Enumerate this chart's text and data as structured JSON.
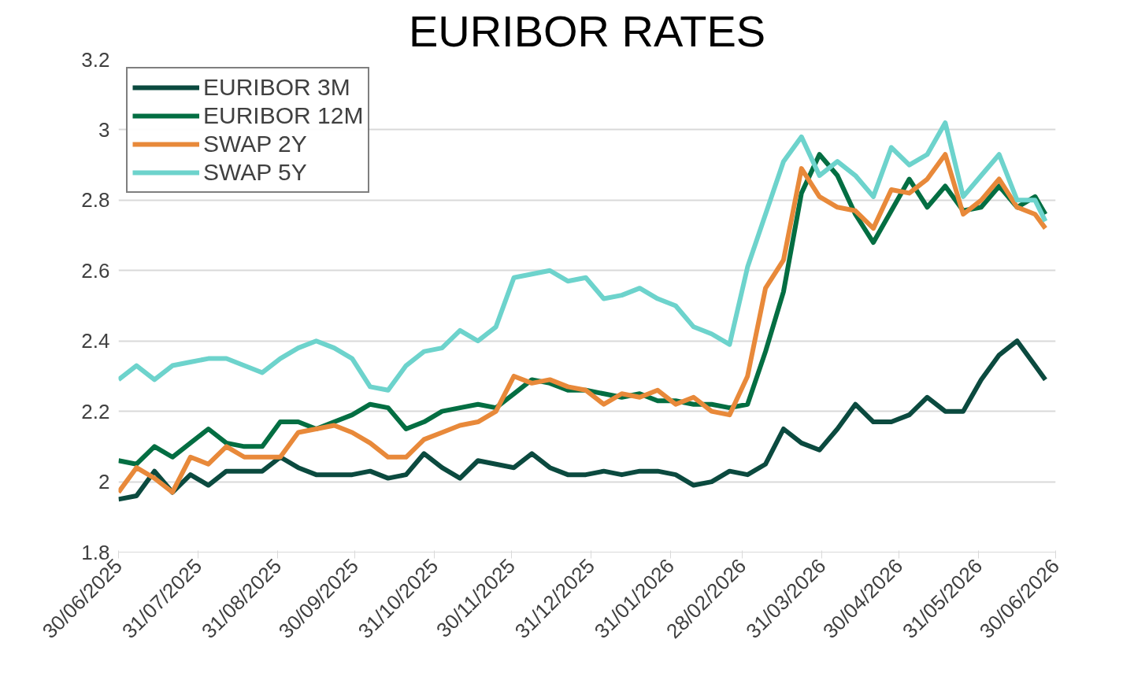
{
  "chart_data": {
    "type": "line",
    "title": "EURIBOR RATES",
    "x": [
      "2025-06-30",
      "2025-07-07",
      "2025-07-14",
      "2025-07-21",
      "2025-07-28",
      "2025-08-04",
      "2025-08-11",
      "2025-08-18",
      "2025-08-25",
      "2025-09-01",
      "2025-09-08",
      "2025-09-15",
      "2025-09-22",
      "2025-09-29",
      "2025-10-06",
      "2025-10-13",
      "2025-10-20",
      "2025-10-27",
      "2025-11-03",
      "2025-11-10",
      "2025-11-17",
      "2025-11-24",
      "2025-12-01",
      "2025-12-08",
      "2025-12-15",
      "2025-12-22",
      "2025-12-29",
      "2026-01-05",
      "2026-01-12",
      "2026-01-19",
      "2026-01-26",
      "2026-02-02",
      "2026-02-09",
      "2026-02-16",
      "2026-02-23",
      "2026-03-02",
      "2026-03-09",
      "2026-03-16",
      "2026-03-23",
      "2026-03-30",
      "2026-04-06",
      "2026-04-13",
      "2026-04-20",
      "2026-04-27",
      "2026-05-04",
      "2026-05-11",
      "2026-05-18",
      "2026-05-25",
      "2026-06-01",
      "2026-06-08",
      "2026-06-15",
      "2026-06-22",
      "2026-06-26"
    ],
    "series": [
      {
        "name": "EURIBOR 3M",
        "color": "#0b4a3f",
        "values": [
          1.95,
          1.96,
          2.03,
          1.97,
          2.02,
          1.99,
          2.03,
          2.03,
          2.03,
          2.07,
          2.04,
          2.02,
          2.02,
          2.02,
          2.03,
          2.01,
          2.02,
          2.08,
          2.04,
          2.01,
          2.06,
          2.05,
          2.04,
          2.08,
          2.04,
          2.02,
          2.02,
          2.03,
          2.02,
          2.03,
          2.03,
          2.02,
          1.99,
          2.0,
          2.03,
          2.02,
          2.05,
          2.15,
          2.11,
          2.09,
          2.15,
          2.22,
          2.17,
          2.17,
          2.19,
          2.24,
          2.2,
          2.2,
          2.29,
          2.36,
          2.4,
          2.33,
          2.29
        ]
      },
      {
        "name": "EURIBOR 12M",
        "color": "#036e42",
        "values": [
          2.06,
          2.05,
          2.1,
          2.07,
          2.11,
          2.15,
          2.11,
          2.1,
          2.1,
          2.17,
          2.17,
          2.15,
          2.17,
          2.19,
          2.22,
          2.21,
          2.15,
          2.17,
          2.2,
          2.21,
          2.22,
          2.21,
          2.25,
          2.29,
          2.28,
          2.26,
          2.26,
          2.25,
          2.24,
          2.25,
          2.23,
          2.23,
          2.22,
          2.22,
          2.21,
          2.22,
          2.37,
          2.54,
          2.82,
          2.93,
          2.87,
          2.76,
          2.68,
          2.77,
          2.86,
          2.78,
          2.84,
          2.77,
          2.78,
          2.84,
          2.78,
          2.81,
          2.76
        ]
      },
      {
        "name": "SWAP 2Y",
        "color": "#e8893a",
        "values": [
          1.97,
          2.04,
          2.01,
          1.97,
          2.07,
          2.05,
          2.1,
          2.07,
          2.07,
          2.07,
          2.14,
          2.15,
          2.16,
          2.14,
          2.11,
          2.07,
          2.07,
          2.12,
          2.14,
          2.16,
          2.17,
          2.2,
          2.3,
          2.28,
          2.29,
          2.27,
          2.26,
          2.22,
          2.25,
          2.24,
          2.26,
          2.22,
          2.24,
          2.2,
          2.19,
          2.3,
          2.55,
          2.63,
          2.89,
          2.81,
          2.78,
          2.77,
          2.72,
          2.83,
          2.82,
          2.86,
          2.93,
          2.76,
          2.8,
          2.86,
          2.78,
          2.76,
          2.72
        ]
      },
      {
        "name": "SWAP 5Y",
        "color": "#6dd3cc",
        "values": [
          2.29,
          2.33,
          2.29,
          2.33,
          2.34,
          2.35,
          2.35,
          2.33,
          2.31,
          2.35,
          2.38,
          2.4,
          2.38,
          2.35,
          2.27,
          2.26,
          2.33,
          2.37,
          2.38,
          2.43,
          2.4,
          2.44,
          2.58,
          2.59,
          2.6,
          2.57,
          2.58,
          2.52,
          2.53,
          2.55,
          2.52,
          2.5,
          2.44,
          2.42,
          2.39,
          2.61,
          2.76,
          2.91,
          2.98,
          2.87,
          2.91,
          2.87,
          2.81,
          2.95,
          2.9,
          2.93,
          3.02,
          2.81,
          2.87,
          2.93,
          2.8,
          2.8,
          2.74
        ]
      }
    ],
    "xlim": [
      "2025-06-30",
      "2026-06-30"
    ],
    "xticks": [
      {
        "value": "2025-06-30",
        "label": "30/06/2025"
      },
      {
        "value": "2025-07-31",
        "label": "31/07/2025"
      },
      {
        "value": "2025-08-31",
        "label": "31/08/2025"
      },
      {
        "value": "2025-09-30",
        "label": "30/09/2025"
      },
      {
        "value": "2025-10-31",
        "label": "31/10/2025"
      },
      {
        "value": "2025-11-30",
        "label": "30/11/2025"
      },
      {
        "value": "2025-12-31",
        "label": "31/12/2025"
      },
      {
        "value": "2026-01-31",
        "label": "31/01/2026"
      },
      {
        "value": "2026-02-28",
        "label": "28/02/2026"
      },
      {
        "value": "2026-03-31",
        "label": "31/03/2026"
      },
      {
        "value": "2026-04-30",
        "label": "30/04/2026"
      },
      {
        "value": "2026-05-31",
        "label": "31/05/2026"
      },
      {
        "value": "2026-06-30",
        "label": "30/06/2026"
      }
    ],
    "ylim": [
      1.8,
      3.2
    ],
    "yticks": [
      1.8,
      2,
      2.2,
      2.4,
      2.6,
      2.8,
      3,
      3.2
    ],
    "grid": "y",
    "legend": "top left",
    "line_style": "solid"
  }
}
